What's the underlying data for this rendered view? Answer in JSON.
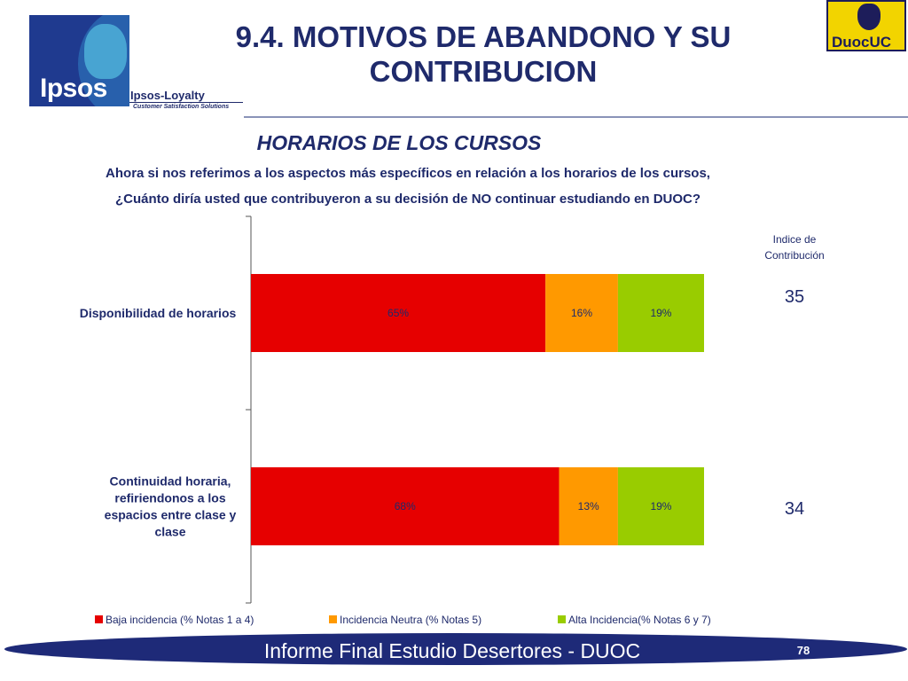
{
  "brand": {
    "ipsos_name": "Ipsos",
    "loyalty_name": "Ipsos-Loyalty",
    "loyalty_tagline": "Customer Satisfaction Solutions",
    "duoc_name": "DuocUC"
  },
  "header": {
    "title_line1": "9.4. MOTIVOS DE ABANDONO Y SU",
    "title_line2": "CONTRIBUCION"
  },
  "section": {
    "subtitle": "HORARIOS DE LOS CURSOS",
    "question_line1": "Ahora si nos referimos a los aspectos más específicos en relación a los horarios de los cursos,",
    "question_line2": "¿Cuánto diría usted que contribuyeron a su decisión de NO continuar estudiando en DUOC?"
  },
  "index": {
    "title_line1": "Indice de",
    "title_line2": "Contribución",
    "values": [
      "35",
      "34"
    ]
  },
  "chart_data": {
    "type": "bar",
    "orientation": "horizontal",
    "stacked": true,
    "categories": [
      "Disponibilidad de horarios",
      "Continuidad horaria, refiriendonos a los espacios entre clase y clase"
    ],
    "category_lines": [
      [
        "Disponibilidad de horarios"
      ],
      [
        "Continuidad horaria,",
        "refiriendonos a los",
        "espacios entre clase y",
        "clase"
      ]
    ],
    "series": [
      {
        "name": "Baja incidencia (% Notas 1 a 4)",
        "values": [
          65,
          68
        ],
        "labels": [
          "65%",
          "68%"
        ],
        "color": "#e60000"
      },
      {
        "name": "Incidencia Neutra (% Notas 5)",
        "values": [
          16,
          13
        ],
        "labels": [
          "16%",
          "13%"
        ],
        "color": "#ff9900"
      },
      {
        "name": "Alta Incidencia(% Notas 6 y 7)",
        "values": [
          19,
          19
        ],
        "labels": [
          "19%",
          "19%"
        ],
        "color": "#99cc00"
      }
    ],
    "xlim": [
      0,
      100
    ],
    "legend_position": "bottom",
    "grid": false
  },
  "footer": {
    "text": "Informe Final Estudio Desertores - DUOC",
    "page": "78"
  }
}
